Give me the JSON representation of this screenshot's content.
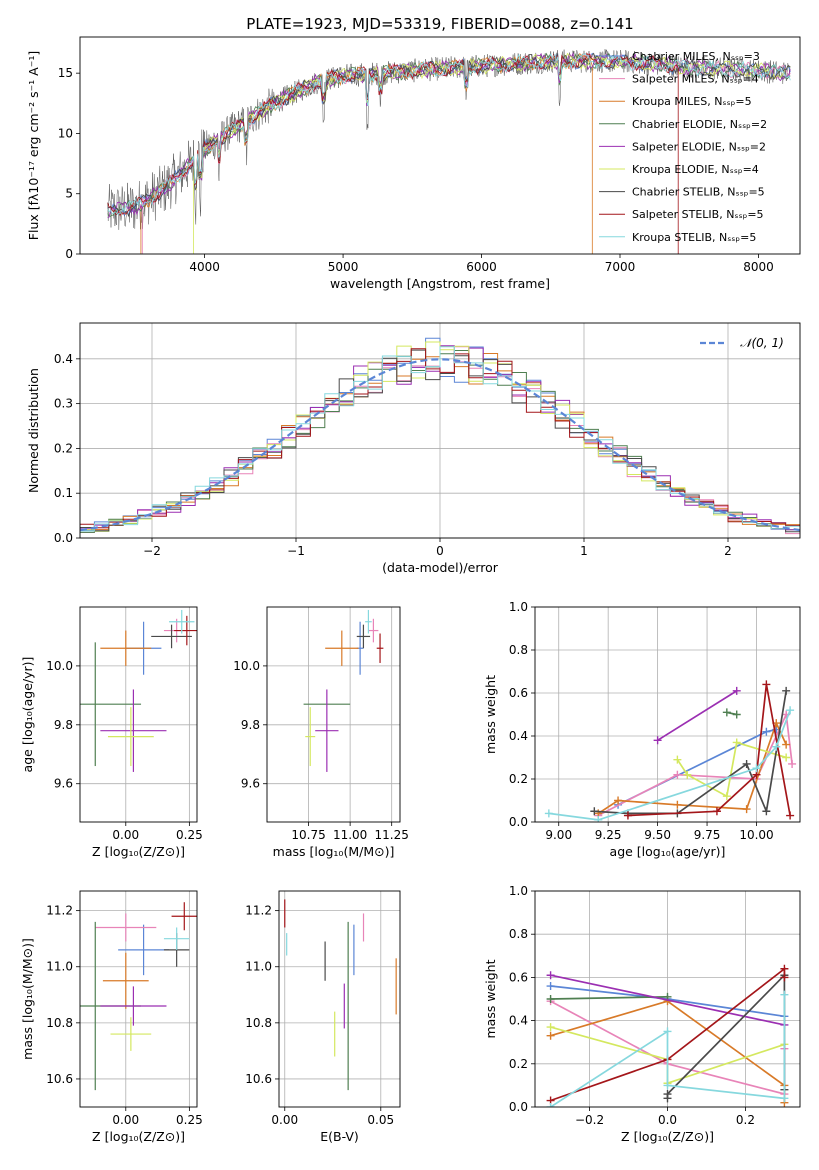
{
  "title": "PLATE=1923, MJD=53319, FIBERID=0088, z=0.141",
  "colors": {
    "Chabrier MILES": "#5b86d6",
    "Salpeter MILES": "#e884b8",
    "Kroupa MILES": "#d87a28",
    "Chabrier ELODIE": "#4f7f51",
    "Salpeter ELODIE": "#9b2fb2",
    "Kroupa ELODIE": "#d4e85f",
    "Chabrier STELIB": "#4a4a4a",
    "Salpeter STELIB": "#a4161a",
    "Kroupa STELIB": "#86d8de"
  },
  "chart_data": [
    {
      "id": "spectrum",
      "type": "line",
      "title": "PLATE=1923, MJD=53319, FIBERID=0088, z=0.141",
      "xlabel": "wavelength [Angstrom, rest frame]",
      "ylabel": "Flux [fλ10⁻¹⁷ erg cm⁻² s⁻¹ A⁻¹]",
      "xlim": [
        3100,
        8300
      ],
      "ylim": [
        0,
        18
      ],
      "xticks": [
        4000,
        5000,
        6000,
        7000,
        8000
      ],
      "yticks": [
        0,
        5,
        10,
        15
      ],
      "legend_position": "top-right",
      "continuum": {
        "x": [
          3300,
          3500,
          3700,
          3900,
          4000,
          4200,
          4500,
          4800,
          5000,
          5300,
          5600,
          6000,
          6500,
          7000,
          7500,
          8000,
          8230
        ],
        "y": [
          3.6,
          3.9,
          5.3,
          7.5,
          8.7,
          10.3,
          12.5,
          14.2,
          14.8,
          15.0,
          15.3,
          15.6,
          16.0,
          16.0,
          15.5,
          15.2,
          15.0
        ]
      },
      "series": [
        {
          "name": "Chabrier MILES, Nₛₛₚ=3"
        },
        {
          "name": "Salpeter MILES, Nₛₛₚ=4"
        },
        {
          "name": "Kroupa MILES, Nₛₛₚ=5"
        },
        {
          "name": "Chabrier ELODIE, Nₛₛₚ=2"
        },
        {
          "name": "Salpeter ELODIE, Nₛₛₚ=2"
        },
        {
          "name": "Kroupa ELODIE, Nₛₛₚ=4"
        },
        {
          "name": "Chabrier STELIB, Nₛₛₚ=5"
        },
        {
          "name": "Salpeter STELIB, Nₛₛₚ=5"
        },
        {
          "name": "Kroupa STELIB, Nₛₛₚ=5"
        }
      ]
    },
    {
      "id": "residuals",
      "type": "line",
      "xlabel": "(data-model)/error",
      "ylabel": "Normed distribution",
      "xlim": [
        -2.5,
        2.5
      ],
      "ylim": [
        0,
        0.48
      ],
      "xticks": [
        -2,
        -1,
        0,
        1,
        2
      ],
      "yticks": [
        0.0,
        0.1,
        0.2,
        0.3,
        0.4
      ],
      "grid": true,
      "legend_position": "top-right",
      "legend": "𝒩(0, 1)",
      "hist_bins": {
        "start": -2.5,
        "width": 0.1,
        "count": 50
      }
    },
    {
      "id": "age_vs_Z",
      "type": "scatter",
      "xlabel": "Z [log₁₀(Z/Z⊙)]",
      "ylabel": "age  [log₁₀(age/yr)]",
      "xlim": [
        -0.18,
        0.28
      ],
      "ylim": [
        9.47,
        10.2
      ],
      "xticks": [
        0.0,
        0.25
      ],
      "yticks": [
        9.6,
        9.8,
        10.0
      ],
      "grid": true,
      "points": [
        {
          "model": "Chabrier MILES",
          "x": 0.07,
          "y": 10.06,
          "xerr": 0.07,
          "yerr": 0.09
        },
        {
          "model": "Salpeter MILES",
          "x": 0.2,
          "y": 10.12,
          "xerr": 0.05,
          "yerr": 0.04
        },
        {
          "model": "Kroupa MILES",
          "x": 0.0,
          "y": 10.06,
          "xerr": 0.1,
          "yerr": 0.06
        },
        {
          "model": "Chabrier ELODIE",
          "x": -0.12,
          "y": 9.87,
          "xerr": 0.18,
          "yerr": 0.21
        },
        {
          "model": "Salpeter ELODIE",
          "x": 0.03,
          "y": 9.78,
          "xerr": 0.13,
          "yerr": 0.14
        },
        {
          "model": "Kroupa ELODIE",
          "x": 0.02,
          "y": 9.76,
          "xerr": 0.09,
          "yerr": 0.1
        },
        {
          "model": "Chabrier STELIB",
          "x": 0.18,
          "y": 10.1,
          "xerr": 0.08,
          "yerr": 0.04
        },
        {
          "model": "Salpeter STELIB",
          "x": 0.24,
          "y": 10.12,
          "xerr": 0.05,
          "yerr": 0.05
        },
        {
          "model": "Kroupa STELIB",
          "x": 0.22,
          "y": 10.15,
          "xerr": 0.05,
          "yerr": 0.04
        }
      ]
    },
    {
      "id": "age_vs_mass",
      "type": "scatter",
      "xlabel": "mass [log₁₀(M/M⊙)]",
      "xlim": [
        10.5,
        11.3
      ],
      "ylim": [
        9.47,
        10.2
      ],
      "xticks": [
        10.75,
        11.0,
        11.25
      ],
      "yticks": [
        9.6,
        9.8,
        10.0
      ],
      "grid": true,
      "points": [
        {
          "model": "Chabrier MILES",
          "x": 11.06,
          "y": 10.06,
          "xerr": 0.02,
          "yerr": 0.09
        },
        {
          "model": "Salpeter MILES",
          "x": 11.14,
          "y": 10.12,
          "xerr": 0.03,
          "yerr": 0.04
        },
        {
          "model": "Kroupa MILES",
          "x": 10.95,
          "y": 10.06,
          "xerr": 0.1,
          "yerr": 0.06
        },
        {
          "model": "Chabrier ELODIE",
          "x": 10.86,
          "y": 9.87,
          "xerr": 0.14,
          "yerr": 0.0
        },
        {
          "model": "Salpeter ELODIE",
          "x": 10.86,
          "y": 9.78,
          "xerr": 0.07,
          "yerr": 0.14
        },
        {
          "model": "Kroupa ELODIE",
          "x": 10.76,
          "y": 9.76,
          "xerr": 0.03,
          "yerr": 0.1
        },
        {
          "model": "Chabrier STELIB",
          "x": 11.08,
          "y": 10.1,
          "xerr": 0.04,
          "yerr": 0.04
        },
        {
          "model": "Salpeter STELIB",
          "x": 11.18,
          "y": 10.06,
          "xerr": 0.02,
          "yerr": 0.05
        },
        {
          "model": "Kroupa STELIB",
          "x": 11.11,
          "y": 10.15,
          "xerr": 0.02,
          "yerr": 0.04
        }
      ]
    },
    {
      "id": "weight_vs_age",
      "type": "line",
      "xlabel": "age  [log₁₀(age/yr)]",
      "ylabel": "mass weight",
      "xlim": [
        8.88,
        10.22
      ],
      "ylim": [
        0.0,
        1.0
      ],
      "xticks": [
        9.0,
        9.25,
        9.5,
        9.75,
        10.0
      ],
      "yticks": [
        0.0,
        0.2,
        0.4,
        0.6,
        0.8,
        1.0
      ],
      "grid": true,
      "series": [
        {
          "model": "Chabrier MILES",
          "x": [
            9.3,
            10.05,
            10.1
          ],
          "y": [
            0.08,
            0.42,
            0.43
          ]
        },
        {
          "model": "Salpeter MILES",
          "x": [
            9.2,
            9.6,
            10.0,
            10.15,
            10.18
          ],
          "y": [
            0.03,
            0.22,
            0.2,
            0.5,
            0.27
          ]
        },
        {
          "model": "Kroupa MILES",
          "x": [
            9.2,
            9.3,
            9.6,
            9.95,
            10.1,
            10.15
          ],
          "y": [
            0.04,
            0.1,
            0.08,
            0.06,
            0.46,
            0.36
          ]
        },
        {
          "model": "Chabrier ELODIE",
          "x": [
            9.85,
            9.9
          ],
          "y": [
            0.51,
            0.5
          ]
        },
        {
          "model": "Salpeter ELODIE",
          "x": [
            9.5,
            9.9
          ],
          "y": [
            0.38,
            0.61
          ]
        },
        {
          "model": "Kroupa ELODIE",
          "x": [
            9.6,
            9.65,
            9.85,
            9.9,
            10.15
          ],
          "y": [
            0.29,
            0.22,
            0.12,
            0.37,
            0.3
          ]
        },
        {
          "model": "Chabrier STELIB",
          "x": [
            9.18,
            9.35,
            9.6,
            9.95,
            10.05,
            10.15
          ],
          "y": [
            0.05,
            0.04,
            0.04,
            0.27,
            0.05,
            0.61
          ]
        },
        {
          "model": "Salpeter STELIB",
          "x": [
            9.35,
            9.8,
            10.0,
            10.05,
            10.17
          ],
          "y": [
            0.03,
            0.05,
            0.22,
            0.64,
            0.03
          ]
        },
        {
          "model": "Kroupa STELIB",
          "x": [
            8.95,
            9.2,
            10.0,
            10.1,
            10.17
          ],
          "y": [
            0.04,
            0.01,
            0.25,
            0.35,
            0.52
          ]
        }
      ]
    },
    {
      "id": "mass_vs_Z",
      "type": "scatter",
      "xlabel": "Z [log₁₀(Z/Z⊙)]",
      "ylabel": "mass [log₁₀(M/M⊙)]",
      "xlim": [
        -0.18,
        0.28
      ],
      "ylim": [
        10.5,
        11.27
      ],
      "xticks": [
        0.0,
        0.25
      ],
      "yticks": [
        10.6,
        10.8,
        11.0,
        11.2
      ],
      "grid": true,
      "points": [
        {
          "model": "Chabrier MILES",
          "x": 0.07,
          "y": 11.06,
          "xerr": 0.1,
          "yerr": 0.09
        },
        {
          "model": "Salpeter MILES",
          "x": 0.0,
          "y": 11.14,
          "xerr": 0.12,
          "yerr": 0.05
        },
        {
          "model": "Kroupa MILES",
          "x": 0.0,
          "y": 10.95,
          "xerr": 0.09,
          "yerr": 0.1
        },
        {
          "model": "Chabrier ELODIE",
          "x": -0.12,
          "y": 10.86,
          "xerr": 0.18,
          "yerr": 0.3
        },
        {
          "model": "Salpeter ELODIE",
          "x": 0.03,
          "y": 10.86,
          "xerr": 0.13,
          "yerr": 0.07
        },
        {
          "model": "Kroupa ELODIE",
          "x": 0.02,
          "y": 10.76,
          "xerr": 0.08,
          "yerr": 0.06
        },
        {
          "model": "Chabrier STELIB",
          "x": 0.2,
          "y": 11.06,
          "xerr": 0.05,
          "yerr": 0.06
        },
        {
          "model": "Salpeter STELIB",
          "x": 0.23,
          "y": 11.18,
          "xerr": 0.05,
          "yerr": 0.05
        },
        {
          "model": "Kroupa STELIB",
          "x": 0.2,
          "y": 11.1,
          "xerr": 0.05,
          "yerr": 0.04
        }
      ]
    },
    {
      "id": "mass_vs_EBV",
      "type": "scatter",
      "xlabel": "E(B-V)",
      "xlim": [
        -0.003,
        0.06
      ],
      "ylim": [
        10.5,
        11.27
      ],
      "xticks": [
        0.0,
        0.05
      ],
      "yticks": [
        10.6,
        10.8,
        11.0,
        11.2
      ],
      "grid": true,
      "points": [
        {
          "model": "Chabrier MILES",
          "x": 0.036,
          "y": 11.06,
          "xerr": 0.0,
          "yerr": 0.09
        },
        {
          "model": "Salpeter MILES",
          "x": 0.041,
          "y": 11.14,
          "xerr": 0.0,
          "yerr": 0.05
        },
        {
          "model": "Kroupa MILES",
          "x": 0.058,
          "y": 10.93,
          "xerr": 0.0,
          "yerr": 0.1
        },
        {
          "model": "Chabrier ELODIE",
          "x": 0.033,
          "y": 10.86,
          "xerr": 0.0,
          "yerr": 0.3
        },
        {
          "model": "Salpeter ELODIE",
          "x": 0.031,
          "y": 10.86,
          "xerr": 0.0,
          "yerr": 0.08
        },
        {
          "model": "Kroupa ELODIE",
          "x": 0.026,
          "y": 10.76,
          "xerr": 0.0,
          "yerr": 0.08
        },
        {
          "model": "Chabrier STELIB",
          "x": 0.021,
          "y": 11.02,
          "xerr": 0.0,
          "yerr": 0.07
        },
        {
          "model": "Salpeter STELIB",
          "x": 0.0,
          "y": 11.19,
          "xerr": 0.0,
          "yerr": 0.05
        },
        {
          "model": "Kroupa STELIB",
          "x": 0.001,
          "y": 11.08,
          "xerr": 0.0,
          "yerr": 0.04
        }
      ]
    },
    {
      "id": "weight_vs_Z",
      "type": "line",
      "xlabel": "Z [log₁₀(Z/Z⊙)]",
      "ylabel": "mass weight",
      "xlim": [
        -0.34,
        0.34
      ],
      "ylim": [
        0.0,
        1.0
      ],
      "xticks": [
        -0.2,
        0.0,
        0.2
      ],
      "yticks": [
        0.0,
        0.2,
        0.4,
        0.6,
        0.8,
        1.0
      ],
      "grid": true,
      "series": [
        {
          "model": "Chabrier MILES",
          "x": [
            -0.3,
            0.0,
            0.3
          ],
          "y": [
            0.56,
            0.5,
            0.42
          ]
        },
        {
          "model": "Salpeter MILES",
          "x": [
            -0.3,
            0.0,
            0.3,
            0.3
          ],
          "y": [
            0.49,
            0.2,
            0.06,
            0.27
          ]
        },
        {
          "model": "Kroupa MILES",
          "x": [
            -0.3,
            0.0,
            0.3,
            0.3
          ],
          "y": [
            0.33,
            0.49,
            0.1,
            0.02
          ]
        },
        {
          "model": "Chabrier ELODIE",
          "x": [
            -0.3,
            0.0
          ],
          "y": [
            0.5,
            0.51
          ]
        },
        {
          "model": "Salpeter ELODIE",
          "x": [
            -0.3,
            0.3
          ],
          "y": [
            0.61,
            0.38
          ]
        },
        {
          "model": "Kroupa ELODIE",
          "x": [
            -0.3,
            0.0,
            0.0,
            0.3
          ],
          "y": [
            0.37,
            0.22,
            0.11,
            0.29
          ]
        },
        {
          "model": "Chabrier STELIB",
          "x": [
            0.0,
            0.0,
            0.3,
            0.3
          ],
          "y": [
            0.04,
            0.06,
            0.61,
            0.08
          ]
        },
        {
          "model": "Salpeter STELIB",
          "x": [
            -0.3,
            0.0,
            0.3,
            0.3
          ],
          "y": [
            0.03,
            0.22,
            0.64,
            0.6
          ]
        },
        {
          "model": "Kroupa STELIB",
          "x": [
            -0.3,
            0.0,
            0.0,
            0.3,
            0.3
          ],
          "y": [
            0.0,
            0.35,
            0.1,
            0.04,
            0.52
          ]
        }
      ]
    }
  ]
}
